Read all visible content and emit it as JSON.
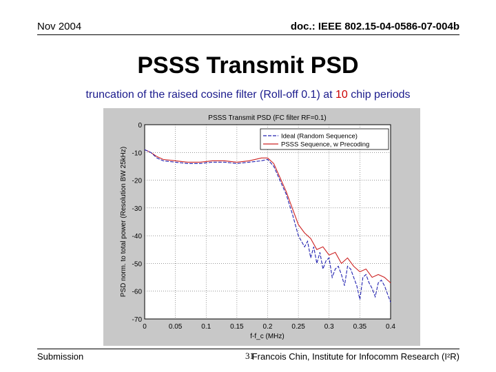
{
  "header": {
    "date": "Nov 2004",
    "doc": "doc.: IEEE 802.15-04-0586-07-004b"
  },
  "slide": {
    "title": "PSSS Transmit PSD",
    "subtitle_pre": "truncation of the raised cosine filter (Roll-off 0.1) at ",
    "subtitle_highlight": "10",
    "subtitle_post": " chip periods"
  },
  "footer": {
    "left": "Submission",
    "page": "31",
    "right": "Francois Chin, Institute for Infocomm Research (I²R)"
  },
  "colors": {
    "ideal": "#2020b0",
    "psss": "#cc2020",
    "subtitle": "#1a1a8c",
    "highlight": "#cc0000",
    "figure_bg": "#c8c8c8"
  },
  "chart_data": {
    "type": "line",
    "title": "PSSS Transmit PSD (FC filter RF=0.1)",
    "xlabel": "f-f_c (MHz)",
    "ylabel": "PSD norm. to total power (Resolution BW 25kHz)",
    "xlim": [
      0,
      0.4
    ],
    "ylim": [
      -70,
      0
    ],
    "xticks": [
      0,
      0.05,
      0.1,
      0.15,
      0.2,
      0.25,
      0.3,
      0.35,
      0.4
    ],
    "xtick_labels": [
      "0",
      "0.05",
      "0.1",
      "0.15",
      "0.2",
      "0.25",
      "0.3",
      "0.35",
      "0.4"
    ],
    "yticks": [
      0,
      -10,
      -20,
      -30,
      -40,
      -50,
      -60,
      -70
    ],
    "ytick_labels": [
      "0",
      "-10",
      "-20",
      "-30",
      "-40",
      "-50",
      "-60",
      "-70"
    ],
    "grid": true,
    "legend_position": "top-right",
    "series": [
      {
        "name": "Ideal (Random Sequence)",
        "color": "#2020b0",
        "dash": true,
        "x": [
          0,
          0.01,
          0.02,
          0.03,
          0.05,
          0.07,
          0.09,
          0.11,
          0.13,
          0.15,
          0.17,
          0.19,
          0.2,
          0.21,
          0.22,
          0.23,
          0.24,
          0.25,
          0.26,
          0.265,
          0.27,
          0.275,
          0.28,
          0.285,
          0.29,
          0.295,
          0.3,
          0.305,
          0.31,
          0.315,
          0.32,
          0.325,
          0.33,
          0.335,
          0.34,
          0.345,
          0.35,
          0.355,
          0.36,
          0.365,
          0.37,
          0.375,
          0.38,
          0.385,
          0.39,
          0.395,
          0.4
        ],
        "y": [
          -9,
          -10,
          -12,
          -13,
          -13.5,
          -14,
          -14,
          -13.5,
          -13.5,
          -14,
          -13.5,
          -13,
          -12.5,
          -15,
          -20,
          -25,
          -32,
          -40,
          -44,
          -42,
          -48,
          -44,
          -50,
          -46,
          -52,
          -49,
          -48,
          -55,
          -52,
          -51,
          -54,
          -58,
          -51,
          -52,
          -55,
          -58,
          -63,
          -55,
          -54,
          -57,
          -59,
          -62,
          -57,
          -56,
          -58,
          -61,
          -64
        ]
      },
      {
        "name": "PSSS Sequence, w Precoding",
        "color": "#cc2020",
        "dash": false,
        "x": [
          0,
          0.01,
          0.02,
          0.03,
          0.05,
          0.07,
          0.09,
          0.11,
          0.13,
          0.15,
          0.17,
          0.19,
          0.2,
          0.21,
          0.22,
          0.23,
          0.24,
          0.25,
          0.26,
          0.27,
          0.28,
          0.29,
          0.3,
          0.31,
          0.32,
          0.33,
          0.34,
          0.35,
          0.36,
          0.37,
          0.38,
          0.39,
          0.4
        ],
        "y": [
          -9,
          -10,
          -11.5,
          -12.5,
          -13,
          -13.5,
          -13.5,
          -13,
          -13,
          -13.5,
          -13,
          -12,
          -12,
          -14,
          -19,
          -24,
          -30,
          -36,
          -39,
          -41,
          -45,
          -44,
          -47,
          -46,
          -50,
          -48,
          -51,
          -53,
          -52,
          -55,
          -54,
          -55,
          -57
        ]
      }
    ]
  }
}
